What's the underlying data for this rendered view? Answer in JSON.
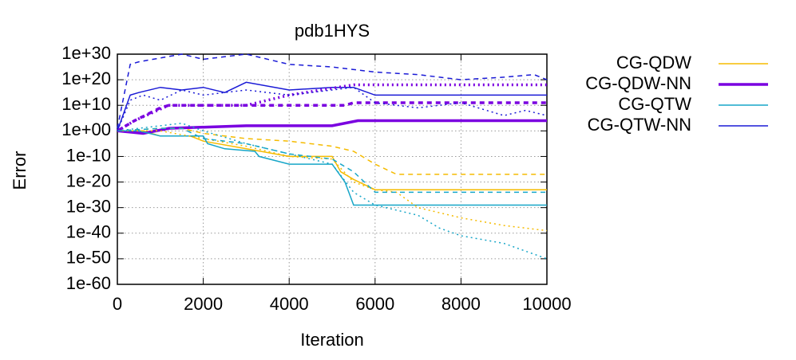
{
  "chart_data": {
    "type": "line",
    "title": "pdb1HYS",
    "xlabel": "Iteration",
    "ylabel": "Error",
    "xlim": [
      0,
      10000
    ],
    "xticks": [
      0,
      2000,
      4000,
      6000,
      8000,
      10000
    ],
    "ylim": [
      1e-60,
      1e+30
    ],
    "yscale": "log",
    "yticks": [
      {
        "value": 1e-60,
        "label": "1e-60"
      },
      {
        "value": 1e-50,
        "label": "1e-50"
      },
      {
        "value": 1e-40,
        "label": "1e-40"
      },
      {
        "value": 1e-30,
        "label": "1e-30"
      },
      {
        "value": 1e-20,
        "label": "1e-20"
      },
      {
        "value": 1e-10,
        "label": "1e-10"
      },
      {
        "value": 1,
        "label": "1e+00"
      },
      {
        "value": 10000000000.0,
        "label": "1e+10"
      },
      {
        "value": 1e+20,
        "label": "1e+20"
      },
      {
        "value": 1e+30,
        "label": "1e+30"
      }
    ],
    "grid": true,
    "legend": "outside-right",
    "series": [
      {
        "name": "CG-QDW",
        "color": "#f5bb00",
        "dash": "solid",
        "linewidth": 1.5,
        "x": [
          0,
          600,
          1000,
          1700,
          2000,
          3000,
          4000,
          5000,
          5200,
          5500,
          6000,
          10000
        ],
        "values": [
          1,
          1,
          0.01,
          0.01,
          0.0001,
          1e-07,
          1e-10,
          1e-10,
          1e-16,
          1e-19,
          1e-23,
          1e-23
        ]
      },
      {
        "name": "CG-QDW-NN",
        "color": "#7a00e0",
        "dash": "solid",
        "linewidth": 3.5,
        "x": [
          0,
          600,
          1200,
          3000,
          5000,
          5600,
          10000
        ],
        "values": [
          1,
          0.1,
          10.0,
          100.0,
          100.0,
          10000.0,
          10000.0
        ]
      },
      {
        "name": "CG-QTW",
        "color": "#17a6c8",
        "dash": "solid",
        "linewidth": 1.5,
        "x": [
          0,
          500,
          1000,
          2000,
          2100,
          2500,
          3200,
          3300,
          4000,
          5000,
          5300,
          5500,
          10000
        ],
        "values": [
          1,
          1,
          0.01,
          0.01,
          1e-05,
          1e-07,
          1e-08,
          1e-10,
          1e-13,
          1e-13,
          1e-20,
          1e-29,
          1e-29
        ]
      },
      {
        "name": "CG-QTW-NN",
        "color": "#1a1ad6",
        "dash": "solid",
        "linewidth": 1.5,
        "x": [
          0,
          300,
          500,
          1000,
          1500,
          2000,
          2500,
          3000,
          4000,
          5000,
          5500,
          6000,
          10000
        ],
        "values": [
          1,
          100000000000000.0,
          1000000000000000.0,
          1e+17,
          1e+16,
          1e+17,
          1000000000000000.0,
          1e+19,
          1e+16,
          1e+17,
          1e+17,
          100000000000000.0,
          100000000000000.0
        ]
      },
      {
        "color": "#f5bb00",
        "dash": "dashed",
        "linewidth": 1.5,
        "x": [
          0,
          1000,
          1500,
          2000,
          3000,
          4000,
          5000,
          5500,
          6000,
          6500,
          10000
        ],
        "values": [
          1,
          10.0,
          10.0,
          0.1,
          0.001,
          0.0001,
          1e-06,
          1e-08,
          1e-13,
          1e-17,
          1e-17
        ]
      },
      {
        "color": "#f5bb00",
        "dash": "dotted",
        "linewidth": 1.5,
        "x": [
          0,
          1000,
          2000,
          3000,
          4000,
          5000,
          5500,
          6000,
          6500,
          7000,
          8000,
          9000,
          10000
        ],
        "values": [
          1,
          1,
          0.001,
          1e-06,
          1e-10,
          1e-11,
          1e-20,
          1e-23,
          1e-24,
          1e-30,
          1e-34,
          1e-37,
          1e-39
        ]
      },
      {
        "color": "#7a00e0",
        "dash": "dashed",
        "linewidth": 3.5,
        "x": [
          0,
          400,
          1000,
          1200,
          5300,
          5500,
          10000
        ],
        "values": [
          1,
          10000.0,
          1000000000.0,
          10000000000.0,
          10000000000.0,
          100000000000.0,
          100000000000.0
        ]
      },
      {
        "color": "#7a00e0",
        "dash": "dotted",
        "linewidth": 3.5,
        "x": [
          0,
          400,
          1200,
          3000,
          4000,
          5500,
          10000
        ],
        "values": [
          1,
          10000.0,
          10000000000.0,
          10000000000.0,
          100000000000000.0,
          1e+18,
          1e+18
        ]
      },
      {
        "color": "#17a6c8",
        "dash": "dashed",
        "linewidth": 1.5,
        "x": [
          0,
          1000,
          1500,
          2000,
          3000,
          4000,
          5000,
          5500,
          6000,
          10000
        ],
        "values": [
          1,
          10.0,
          10.0,
          0.001,
          1e-05,
          1e-09,
          1e-11,
          1e-16,
          1e-24,
          1e-24
        ]
      },
      {
        "color": "#17a6c8",
        "dash": "dotted",
        "linewidth": 1.5,
        "x": [
          0,
          1500,
          2000,
          3000,
          4000,
          5000,
          5500,
          6000,
          7000,
          7500,
          8000,
          9000,
          10000
        ],
        "values": [
          1,
          1000.0,
          1,
          1e-05,
          1e-09,
          1e-13,
          1e-24,
          1e-29,
          1e-33,
          1e-38,
          1e-41,
          1e-44,
          1e-50
        ]
      },
      {
        "color": "#1a1ad6",
        "dash": "dashed",
        "linewidth": 1.5,
        "x": [
          0,
          300,
          500,
          1500,
          2000,
          3000,
          4000,
          5000,
          6000,
          7000,
          8000,
          9000,
          9700,
          10000
        ],
        "values": [
          10.0,
          1e+26,
          1e+27,
          1e+30,
          1e+28,
          1e+30,
          1e+26,
          1e+25,
          1e+23,
          1e+22,
          1e+20,
          1e+21,
          1e+22,
          1e+20
        ]
      },
      {
        "color": "#1a1ad6",
        "dash": "dotted",
        "linewidth": 1.5,
        "x": [
          0,
          300,
          600,
          1000,
          1500,
          2000,
          3000,
          4000,
          5000,
          5500,
          6000,
          7000,
          8000,
          9000,
          9500,
          10000
        ],
        "values": [
          1,
          1000000000000.0,
          100000000000000.0,
          1000000000000.0,
          1e+16,
          100000000000000.0,
          1e+16,
          100000000000000.0,
          1e+16,
          1e+17,
          100000000000.0,
          1000000000.0,
          100000000000.0,
          1000000.0,
          100000000.0,
          1000000.0
        ]
      }
    ]
  }
}
